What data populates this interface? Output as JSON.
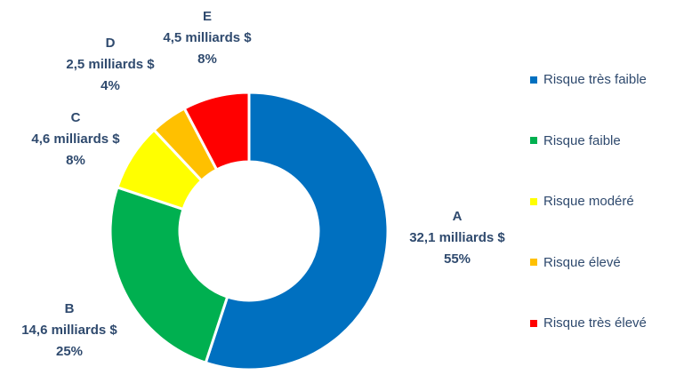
{
  "chart_data": {
    "type": "pie",
    "title": "",
    "donut": true,
    "categories": [
      "A",
      "B",
      "C",
      "D",
      "E"
    ],
    "amounts": [
      "32,1 milliards $",
      "14,6 milliards $",
      "4,6 milliards $",
      "2,5 milliards $",
      "4,5 milliards $"
    ],
    "percent_labels": [
      "55%",
      "25%",
      "8%",
      "4%",
      "8%"
    ],
    "values": [
      32.1,
      14.6,
      4.6,
      2.5,
      4.5
    ],
    "colors": [
      "#0070c0",
      "#00b050",
      "#ffff00",
      "#ffc000",
      "#ff0000"
    ],
    "legend": {
      "placement": "right",
      "entries": [
        "Risque très faible",
        "Risque faible",
        "Risque modéré",
        "Risque élevé",
        "Risque très élevé"
      ]
    }
  }
}
